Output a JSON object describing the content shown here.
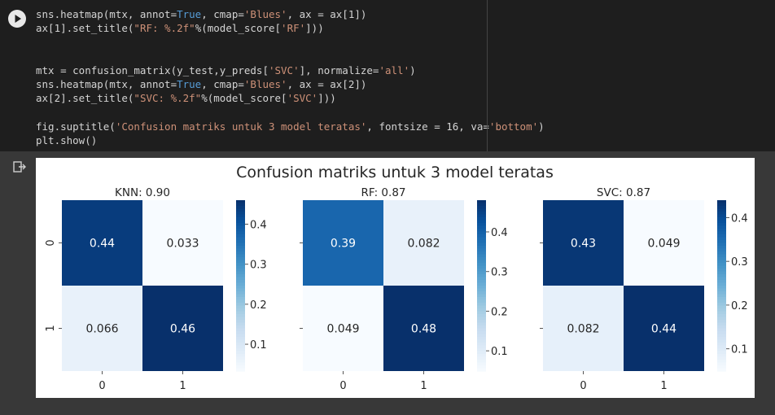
{
  "code_cell": {
    "lines": [
      [
        {
          "t": "sns.heatmap(mtx, annot="
        },
        {
          "t": "True",
          "c": "kw"
        },
        {
          "t": ", cmap="
        },
        {
          "t": "'Blues'",
          "c": "str"
        },
        {
          "t": ", ax = ax[1])"
        }
      ],
      [
        {
          "t": "ax[1].set_title("
        },
        {
          "t": "\"RF: %.2f\"",
          "c": "str"
        },
        {
          "t": "%(model_score["
        },
        {
          "t": "'RF'",
          "c": "str"
        },
        {
          "t": "]))"
        }
      ],
      [],
      [],
      [
        {
          "t": "mtx = confusion_matrix(y_test,y_preds["
        },
        {
          "t": "'SVC'",
          "c": "str"
        },
        {
          "t": "], normalize="
        },
        {
          "t": "'all'",
          "c": "str"
        },
        {
          "t": ")"
        }
      ],
      [
        {
          "t": "sns.heatmap(mtx, annot="
        },
        {
          "t": "True",
          "c": "kw"
        },
        {
          "t": ", cmap="
        },
        {
          "t": "'Blues'",
          "c": "str"
        },
        {
          "t": ", ax = ax[2])"
        }
      ],
      [
        {
          "t": "ax[2].set_title("
        },
        {
          "t": "\"SVC: %.2f\"",
          "c": "str"
        },
        {
          "t": "%(model_score["
        },
        {
          "t": "'SVC'",
          "c": "str"
        },
        {
          "t": "]))"
        }
      ],
      [],
      [
        {
          "t": "fig.suptitle("
        },
        {
          "t": "'Confusion matriks untuk 3 model teratas'",
          "c": "str"
        },
        {
          "t": ", fontsize = 16, va="
        },
        {
          "t": "'bottom'",
          "c": "str"
        },
        {
          "t": ")"
        }
      ],
      [
        {
          "t": "plt.show()"
        }
      ]
    ]
  },
  "colors": {
    "cell_bg": "#1e1e1e",
    "output_bg": "#383838",
    "keyword": "#569cd6",
    "string": "#ce9178",
    "blues_low": "#f7fbff",
    "blues_high": "#08306b"
  },
  "chart_data": {
    "type": "heatmap",
    "title": "Confusion matriks untuk 3 model teratas",
    "colormap": "Blues",
    "panels": [
      {
        "title": "KNN: 0.90",
        "xticks": [
          "0",
          "1"
        ],
        "yticks": [
          "0",
          "1"
        ],
        "values": [
          [
            0.44,
            0.033
          ],
          [
            0.066,
            0.46
          ]
        ],
        "labels": [
          [
            "0.44",
            "0.033"
          ],
          [
            "0.066",
            "0.46"
          ]
        ],
        "colorbar": {
          "ticks": [
            0.1,
            0.2,
            0.3,
            0.4
          ],
          "range": [
            0.033,
            0.46
          ]
        }
      },
      {
        "title": "RF: 0.87",
        "xticks": [
          "0",
          "1"
        ],
        "yticks": [
          "0",
          "1"
        ],
        "values": [
          [
            0.39,
            0.082
          ],
          [
            0.049,
            0.48
          ]
        ],
        "labels": [
          [
            "0.39",
            "0.082"
          ],
          [
            "0.049",
            "0.48"
          ]
        ],
        "colorbar": {
          "ticks": [
            0.1,
            0.2,
            0.3,
            0.4
          ],
          "range": [
            0.049,
            0.48
          ]
        }
      },
      {
        "title": "SVC: 0.87",
        "xticks": [
          "0",
          "1"
        ],
        "yticks": [
          "0",
          "1"
        ],
        "values": [
          [
            0.43,
            0.049
          ],
          [
            0.082,
            0.44
          ]
        ],
        "labels": [
          [
            "0.43",
            "0.049"
          ],
          [
            "0.082",
            "0.44"
          ]
        ],
        "colorbar": {
          "ticks": [
            0.1,
            0.2,
            0.3,
            0.4
          ],
          "range": [
            0.049,
            0.44
          ]
        }
      }
    ]
  }
}
